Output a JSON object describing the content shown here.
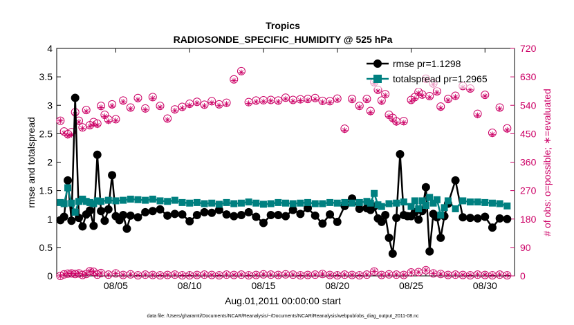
{
  "chart_data": {
    "type": "line",
    "title": "Tropics",
    "subtitle": "RADIOSONDE_SPECIFIC_HUMIDITY @ 525 hPa",
    "xlabel": "Aug.01,2011 00:00:00 start",
    "ylabel_left": "rmse and totalspread",
    "ylabel_right": "# of obs: o=possible; ∗=evaluated",
    "footnote": "data file: /Users/gharamti/Documents/NCAR/Reanalysis/~/Documents/NCAR/Reanalysis/webpub/obs_diag_output_2011-08.nc",
    "xlim": [
      1.0,
      32.0
    ],
    "ylim_left": [
      0,
      4
    ],
    "ylim_right": [
      0,
      720
    ],
    "x_ticks": [
      5,
      10,
      15,
      20,
      25,
      30
    ],
    "x_tick_labels": [
      "08/05",
      "08/10",
      "08/15",
      "08/20",
      "08/25",
      "08/30"
    ],
    "y_left_ticks": [
      0,
      0.5,
      1,
      1.5,
      2,
      2.5,
      3,
      3.5,
      4
    ],
    "y_left_tick_labels": [
      "0",
      "0.5",
      "1",
      "1.5",
      "2",
      "2.5",
      "3",
      "3.5",
      "4"
    ],
    "y_right_ticks": [
      0,
      90,
      180,
      270,
      360,
      450,
      540,
      630,
      720
    ],
    "y_right_tick_labels": [
      "0",
      "90",
      "180",
      "270",
      "360",
      "450",
      "540",
      "630",
      "720"
    ],
    "grid": false,
    "legend_position": "top-right",
    "colors": {
      "rmse": "#000000",
      "totalspread": "#008080",
      "obs": "#cc0066"
    },
    "series": [
      {
        "name": "rmse pr=1.1298",
        "axis": "left",
        "x": [
          1.25,
          1.5,
          1.75,
          2.0,
          2.25,
          2.5,
          2.75,
          3.0,
          3.25,
          3.5,
          3.75,
          4.0,
          4.25,
          4.5,
          4.75,
          5.0,
          5.25,
          5.5,
          5.75,
          6.0,
          6.5,
          7.0,
          7.5,
          8.0,
          8.5,
          9.0,
          9.5,
          10.0,
          10.5,
          11.0,
          11.5,
          12.0,
          12.5,
          13.0,
          13.5,
          14.0,
          14.5,
          15.0,
          15.5,
          16.0,
          16.5,
          17.0,
          17.5,
          18.0,
          18.5,
          19.0,
          19.5,
          20.0,
          20.5,
          21.0,
          21.5,
          22.0,
          22.25,
          22.5,
          22.75,
          23.0,
          23.25,
          23.5,
          23.75,
          24.0,
          24.25,
          24.5,
          24.75,
          25.0,
          25.25,
          25.5,
          25.75,
          26.0,
          26.25,
          26.5,
          26.75,
          27.0,
          27.25,
          27.5,
          28.0,
          28.5,
          29.0,
          29.5,
          30.0,
          30.5,
          31.0,
          31.5
        ],
        "values": [
          0.98,
          1.04,
          1.68,
          0.97,
          3.13,
          1.02,
          0.87,
          1.08,
          1.15,
          0.88,
          2.13,
          1.14,
          0.97,
          1.17,
          1.77,
          1.05,
          0.98,
          1.07,
          0.83,
          1.06,
          1.03,
          1.12,
          1.14,
          1.17,
          1.06,
          1.09,
          1.08,
          0.96,
          1.07,
          1.12,
          1.11,
          1.16,
          1.08,
          1.05,
          1.07,
          1.12,
          1.04,
          0.93,
          1.07,
          1.07,
          1.05,
          1.16,
          1.09,
          1.19,
          1.06,
          0.92,
          1.08,
          0.95,
          1.23,
          1.36,
          1.18,
          1.19,
          1.16,
          1.22,
          1.01,
          0.95,
          1.07,
          0.67,
          0.39,
          1.02,
          2.14,
          1.07,
          1.05,
          1.05,
          1.12,
          0.99,
          1.14,
          1.56,
          0.43,
          1.09,
          1.03,
          0.67,
          1.05,
          1.27,
          1.68,
          1.03,
          1.02,
          1.01,
          1.04,
          0.85,
          1.01,
          1.0
        ]
      },
      {
        "name": "totalspread pr=1.2965",
        "axis": "left",
        "x": [
          1.25,
          1.5,
          1.75,
          2.0,
          2.25,
          2.5,
          2.75,
          3.0,
          3.25,
          3.5,
          3.75,
          4.0,
          4.5,
          5.0,
          5.5,
          6.0,
          6.5,
          7.0,
          7.5,
          8.0,
          8.5,
          9.0,
          9.5,
          10.0,
          10.5,
          11.0,
          11.5,
          12.0,
          12.5,
          13.0,
          13.5,
          14.0,
          14.5,
          15.0,
          15.5,
          16.0,
          16.5,
          17.0,
          17.5,
          18.0,
          18.5,
          19.0,
          19.5,
          20.0,
          20.5,
          21.0,
          21.5,
          22.0,
          22.25,
          22.5,
          22.75,
          23.0,
          23.5,
          24.0,
          24.5,
          25.0,
          25.25,
          25.5,
          25.75,
          26.0,
          26.25,
          26.5,
          26.75,
          27.0,
          27.25,
          27.5,
          28.0,
          28.5,
          29.0,
          29.5,
          30.0,
          30.5,
          31.0,
          31.5
        ],
        "values": [
          1.29,
          1.27,
          1.55,
          1.28,
          1.12,
          1.31,
          1.35,
          1.31,
          1.29,
          1.27,
          1.32,
          1.31,
          1.33,
          1.32,
          1.33,
          1.35,
          1.34,
          1.33,
          1.35,
          1.32,
          1.31,
          1.33,
          1.29,
          1.28,
          1.29,
          1.27,
          1.28,
          1.26,
          1.29,
          1.27,
          1.28,
          1.3,
          1.28,
          1.26,
          1.27,
          1.29,
          1.28,
          1.27,
          1.28,
          1.29,
          1.27,
          1.27,
          1.29,
          1.28,
          1.29,
          1.28,
          1.29,
          1.31,
          1.28,
          1.45,
          1.25,
          1.22,
          1.27,
          1.28,
          1.3,
          1.22,
          1.32,
          1.18,
          1.32,
          1.24,
          1.38,
          1.28,
          1.34,
          1.07,
          1.2,
          1.32,
          1.18,
          1.32,
          1.3,
          1.3,
          1.29,
          1.28,
          1.27,
          1.23
        ]
      },
      {
        "name": "obs possible",
        "axis": "right",
        "x": [
          1.25,
          1.5,
          1.75,
          2.0,
          2.25,
          2.5,
          2.75,
          3.0,
          3.25,
          3.5,
          3.75,
          4.0,
          4.25,
          4.5,
          4.75,
          5.0,
          5.5,
          6.0,
          6.5,
          7.0,
          7.5,
          8.0,
          8.5,
          9.0,
          9.5,
          10.0,
          10.5,
          11.0,
          11.5,
          12.0,
          12.5,
          13.0,
          13.5,
          14.0,
          14.5,
          15.0,
          15.5,
          16.0,
          16.5,
          17.0,
          17.5,
          18.0,
          18.5,
          19.0,
          19.5,
          20.0,
          20.5,
          21.0,
          21.5,
          22.0,
          22.25,
          22.5,
          22.75,
          23.0,
          23.25,
          23.5,
          23.75,
          24.0,
          24.5,
          25.0,
          25.25,
          25.5,
          25.75,
          26.0,
          26.25,
          26.5,
          26.75,
          27.0,
          27.5,
          28.0,
          28.5,
          29.0,
          29.5,
          30.0,
          30.5,
          31.0,
          31.5
        ],
        "values": [
          491,
          457,
          449,
          455,
          518,
          491,
          470,
          525,
          477,
          487,
          482,
          538,
          510,
          495,
          543,
          496,
          555,
          533,
          563,
          530,
          566,
          538,
          498,
          527,
          535,
          545,
          551,
          542,
          553,
          543,
          548,
          622,
          648,
          550,
          555,
          556,
          557,
          555,
          564,
          557,
          559,
          560,
          563,
          554,
          553,
          561,
          466,
          560,
          538,
          560,
          522,
          613,
          589,
          555,
          575,
          510,
          500,
          489,
          490,
          557,
          566,
          582,
          574,
          624,
          569,
          609,
          584,
          536,
          560,
          570,
          601,
          593,
          513,
          573,
          453,
          533,
          467
        ],
        "evaluated": [
          491,
          452,
          443,
          447,
          512,
          487,
          467,
          521,
          473,
          481,
          477,
          533,
          505,
          489,
          538,
          492,
          551,
          529,
          558,
          526,
          562,
          534,
          494,
          523,
          531,
          540,
          547,
          538,
          548,
          539,
          544,
          618,
          644,
          546,
          551,
          552,
          554,
          551,
          560,
          553,
          555,
          556,
          559,
          550,
          549,
          557,
          461,
          556,
          534,
          556,
          517,
          609,
          585,
          550,
          571,
          505,
          494,
          484,
          485,
          553,
          561,
          578,
          570,
          621,
          565,
          606,
          580,
          531,
          556,
          566,
          597,
          589,
          508,
          569,
          448,
          529,
          462
        ]
      },
      {
        "name": "obs possible (low)",
        "axis": "right",
        "x": [
          1.25,
          1.5,
          1.75,
          2.0,
          2.25,
          2.5,
          2.75,
          3.0,
          3.25,
          3.5,
          3.75,
          4.0,
          4.5,
          5.0,
          5.5,
          6.0,
          6.5,
          7.0,
          7.5,
          8.0,
          8.5,
          9.0,
          9.5,
          10.0,
          10.5,
          11.0,
          11.5,
          12.0,
          12.5,
          13.0,
          13.5,
          14.0,
          14.5,
          15.0,
          15.5,
          16.0,
          16.5,
          17.0,
          17.5,
          18.0,
          18.5,
          19.0,
          19.5,
          20.0,
          20.5,
          21.0,
          21.5,
          22.0,
          22.5,
          23.0,
          23.5,
          24.0,
          24.5,
          25.0,
          25.5,
          26.0,
          26.5,
          27.0,
          27.5,
          28.0,
          28.5,
          29.0,
          29.5,
          30.0,
          30.5,
          31.0,
          31.5
        ],
        "values": [
          0,
          5,
          7,
          8,
          6,
          8,
          3,
          6,
          15,
          13,
          4,
          9,
          4,
          8,
          3,
          5,
          2,
          4,
          3,
          2,
          3,
          4,
          2,
          2,
          3,
          4,
          3,
          2,
          4,
          3,
          4,
          2,
          3,
          5,
          4,
          3,
          5,
          4,
          2,
          3,
          4,
          6,
          3,
          2,
          4,
          3,
          2,
          4,
          14,
          3,
          5,
          4,
          3,
          11,
          12,
          18,
          8,
          6,
          3,
          4,
          3,
          2,
          4,
          3,
          2,
          4,
          2
        ]
      }
    ]
  }
}
